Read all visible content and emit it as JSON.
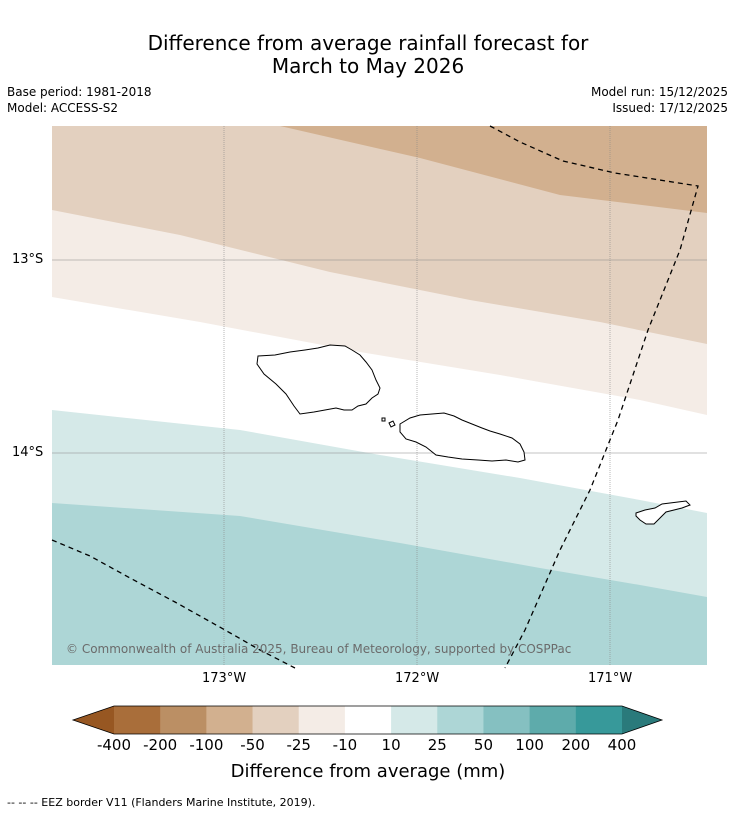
{
  "title": {
    "line1": "Difference from average rainfall forecast for",
    "line2": "March to May 2026"
  },
  "meta": {
    "base_period": "Base period: 1981-2018",
    "model": "Model: ACCESS-S2",
    "model_run": "Model run: 15/12/2025",
    "issued": "Issued: 17/12/2025"
  },
  "map": {
    "lat_labels": [
      "13°S",
      "14°S"
    ],
    "lon_labels": [
      "173°W",
      "172°W",
      "171°W"
    ],
    "copyright": "© Commonwealth of Australia 2025, Bureau of Meteorology, supported by COSPPac",
    "band_colors": {
      "minus100_to_minus50": "#d2b08f",
      "minus50_to_minus25": "#e3d0bf",
      "minus25_to_minus10": "#f4ece6",
      "minus10_to_10": "#ffffff",
      "10_to_25": "#d5e9e8",
      "25_to_50": "#add6d6"
    }
  },
  "colorbar": {
    "ticks": [
      "-400",
      "-200",
      "-100",
      "-50",
      "-25",
      "-10",
      "10",
      "25",
      "50",
      "100",
      "200",
      "400"
    ],
    "colors": [
      "#a96e3a",
      "#bb8f64",
      "#d2b08f",
      "#e3d0bf",
      "#f4ece6",
      "#ffffff",
      "#d5e9e8",
      "#add6d6",
      "#85c0c1",
      "#5eabab",
      "#37999a"
    ],
    "low_extend_color": "#975722",
    "high_extend_color": "#2a7a7b",
    "title": "Difference from average (mm)"
  },
  "footnote": "--  --  -- EEZ border V11 (Flanders Marine Institute, 2019)."
}
